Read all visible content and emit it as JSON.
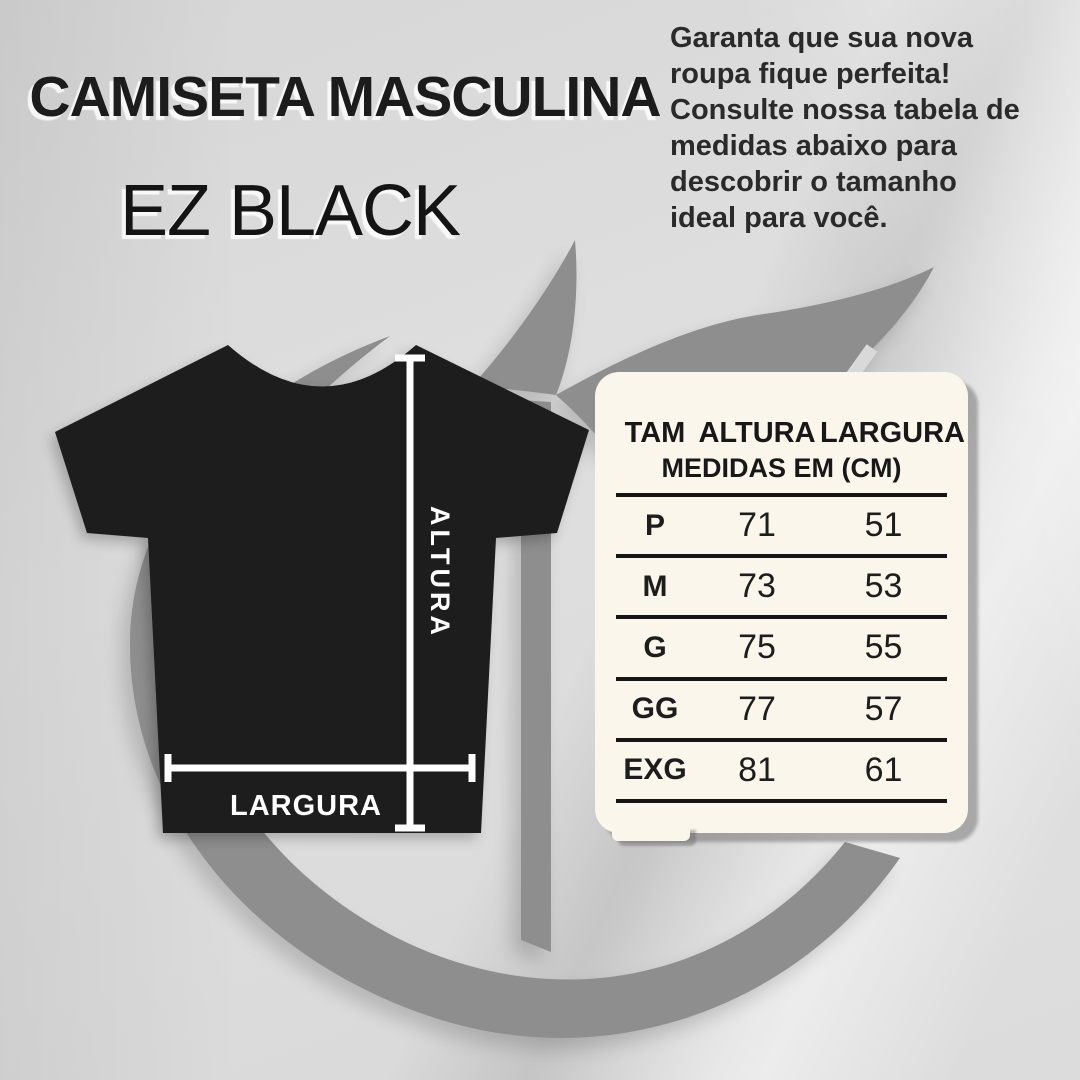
{
  "header": {
    "title": "CAMISETA MASCULINA",
    "subtitle": "EZ BLACK",
    "intro": " Garanta que sua nova\nroupa fique perfeita!\nConsulte nossa tabela de\nmedidas abaixo para\ndescobrir o tamanho\nideal para você."
  },
  "diagram": {
    "height_label": "ALTURA",
    "width_label": "LARGURA"
  },
  "size_table": {
    "columns": [
      "TAM",
      "ALTURA",
      "LARGURA"
    ],
    "subtitle": "MEDIDAS EM (CM)",
    "rows": [
      {
        "size": "P",
        "altura": "71",
        "largura": "51"
      },
      {
        "size": "M",
        "altura": "73",
        "largura": "53"
      },
      {
        "size": "G",
        "altura": "75",
        "largura": "55"
      },
      {
        "size": "GG",
        "altura": "77",
        "largura": "57"
      },
      {
        "size": "EXG",
        "altura": "81",
        "largura": "61"
      }
    ]
  },
  "colors": {
    "background": "#d8d8d8",
    "shirt": "#1d1d1d",
    "watermark": "#8e8e8e",
    "card": "#fbf6ec",
    "table_line": "#161616",
    "measure_line": "#ffffff",
    "heading_text": "#1c1c1c"
  }
}
